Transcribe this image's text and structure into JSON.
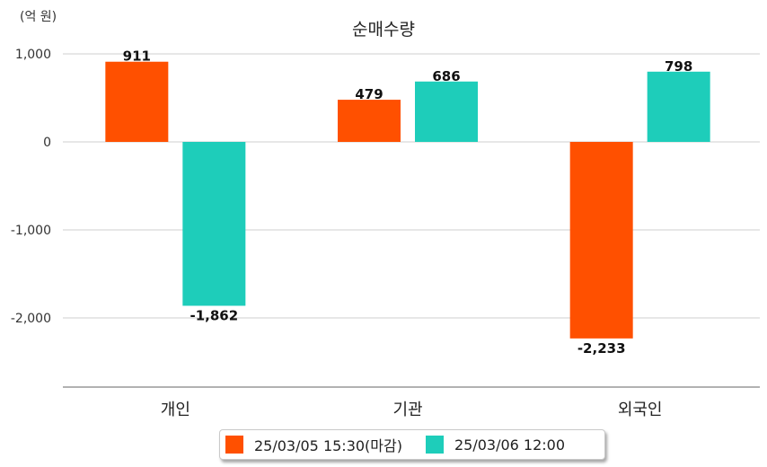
{
  "unit_label": "(억 원)",
  "colors": {
    "series1": "#FF5000",
    "series2": "#1ECDBA"
  },
  "chart_data": {
    "type": "bar",
    "title": "순매수량",
    "categories": [
      "개인",
      "기관",
      "외국인"
    ],
    "series": [
      {
        "name": "25/03/05 15:30(마감)",
        "values": [
          911,
          479,
          -2233
        ],
        "labels": [
          "911",
          "479",
          "-2,233"
        ]
      },
      {
        "name": "25/03/06 12:00",
        "values": [
          -1862,
          686,
          798
        ],
        "labels": [
          "-1,862",
          "686",
          "798"
        ]
      }
    ],
    "yticks": [
      1000,
      0,
      -1000,
      -2000
    ],
    "ytick_labels": [
      "1,000",
      "0",
      "-1,000",
      "-2,000"
    ],
    "ylim": [
      -2800,
      1000
    ],
    "grid": true,
    "legend_position": "bottom"
  }
}
